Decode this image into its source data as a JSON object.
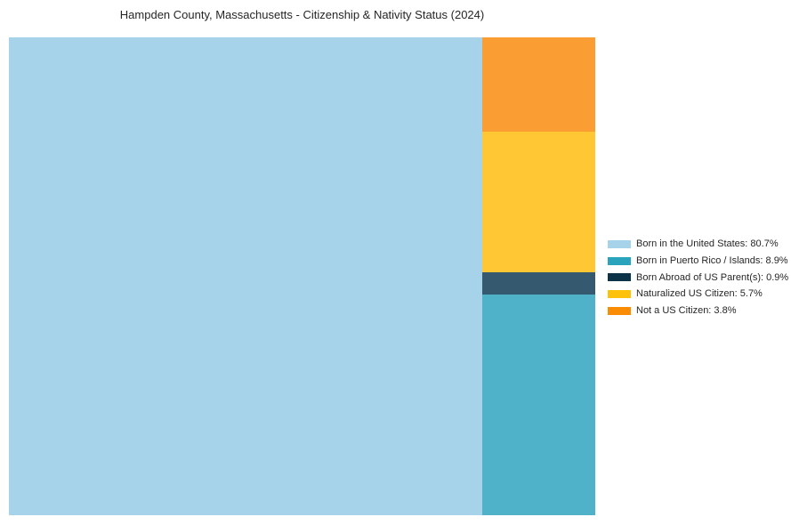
{
  "title": "Hampden County, Massachusetts - Citizenship & Nativity Status (2024)",
  "chart_data": {
    "type": "treemap",
    "title": "Hampden County, Massachusetts - Citizenship & Nativity Status (2024)",
    "unit": "percent",
    "legend_position": "right",
    "layout": "first category fills full-height left block sized by value; remaining categories stacked top-to-bottom in right column in reverse legend order (no gaps, no axes)",
    "categories": [
      "Born in the United States",
      "Born in Puerto Rico / Islands",
      "Born Abroad of US Parent(s)",
      "Naturalized US Citizen",
      "Not a US Citizen"
    ],
    "values": [
      80.7,
      8.9,
      0.9,
      5.7,
      3.8
    ],
    "tile_colors": [
      "#a6d3ea",
      "#4fb2c9",
      "#35596e",
      "#fec733",
      "#fa9e33"
    ],
    "legend": {
      "items": [
        {
          "label": "Born in the United States: 80.7%",
          "color": "#a6d3ea"
        },
        {
          "label": "Born in Puerto Rico / Islands: 8.9%",
          "color": "#2aa3bd"
        },
        {
          "label": "Born Abroad of US Parent(s): 0.9%",
          "color": "#0d3349"
        },
        {
          "label": "Naturalized US Citizen: 5.7%",
          "color": "#fec20d"
        },
        {
          "label": "Not a US Citizen: 3.8%",
          "color": "#f98b05"
        }
      ]
    }
  }
}
